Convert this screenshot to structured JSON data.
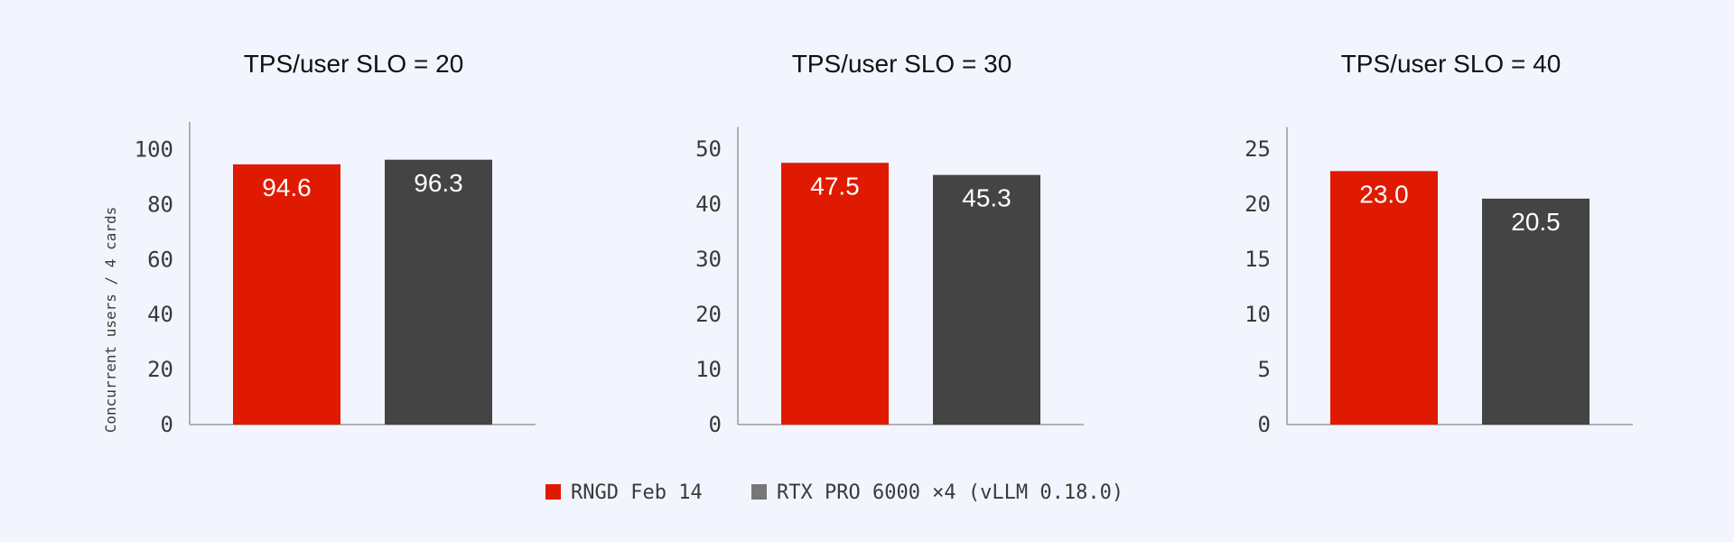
{
  "chart_data": {
    "type": "bar",
    "ylabel": "Concurrent users / 4 cards",
    "legend": {
      "position": "bottom-center",
      "entries": [
        {
          "name": "RNGD Feb 14",
          "color": "#e01a00"
        },
        {
          "name": "RTX PRO 6000 ×4 (vLLM 0.18.0)",
          "color": "#777777"
        }
      ]
    },
    "grid": false,
    "panels": [
      {
        "title": "TPS/user SLO = 20",
        "ylim": [
          0,
          110
        ],
        "yticks": [
          0,
          20,
          40,
          60,
          80,
          100
        ],
        "categories": [
          "RNGD Feb 14",
          "RTX PRO 6000 ×4 (vLLM 0.18.0)"
        ],
        "values": [
          94.6,
          96.3
        ],
        "value_labels": [
          "94.6",
          "96.3"
        ],
        "colors": [
          "#e01a00",
          "#444444"
        ]
      },
      {
        "title": "TPS/user SLO = 30",
        "ylim": [
          0,
          54
        ],
        "yticks": [
          0,
          10,
          20,
          30,
          40,
          50
        ],
        "categories": [
          "RNGD Feb 14",
          "RTX PRO 6000 ×4 (vLLM 0.18.0)"
        ],
        "values": [
          47.5,
          45.3
        ],
        "value_labels": [
          "47.5",
          "45.3"
        ],
        "colors": [
          "#e01a00",
          "#444444"
        ]
      },
      {
        "title": "TPS/user SLO = 40",
        "ylim": [
          0,
          27
        ],
        "yticks": [
          0,
          5,
          10,
          15,
          20,
          25
        ],
        "categories": [
          "RNGD Feb 14",
          "RTX PRO 6000 ×4 (vLLM 0.18.0)"
        ],
        "values": [
          23.0,
          20.5
        ],
        "value_labels": [
          "23.0",
          "20.5"
        ],
        "colors": [
          "#e01a00",
          "#444444"
        ]
      }
    ]
  }
}
